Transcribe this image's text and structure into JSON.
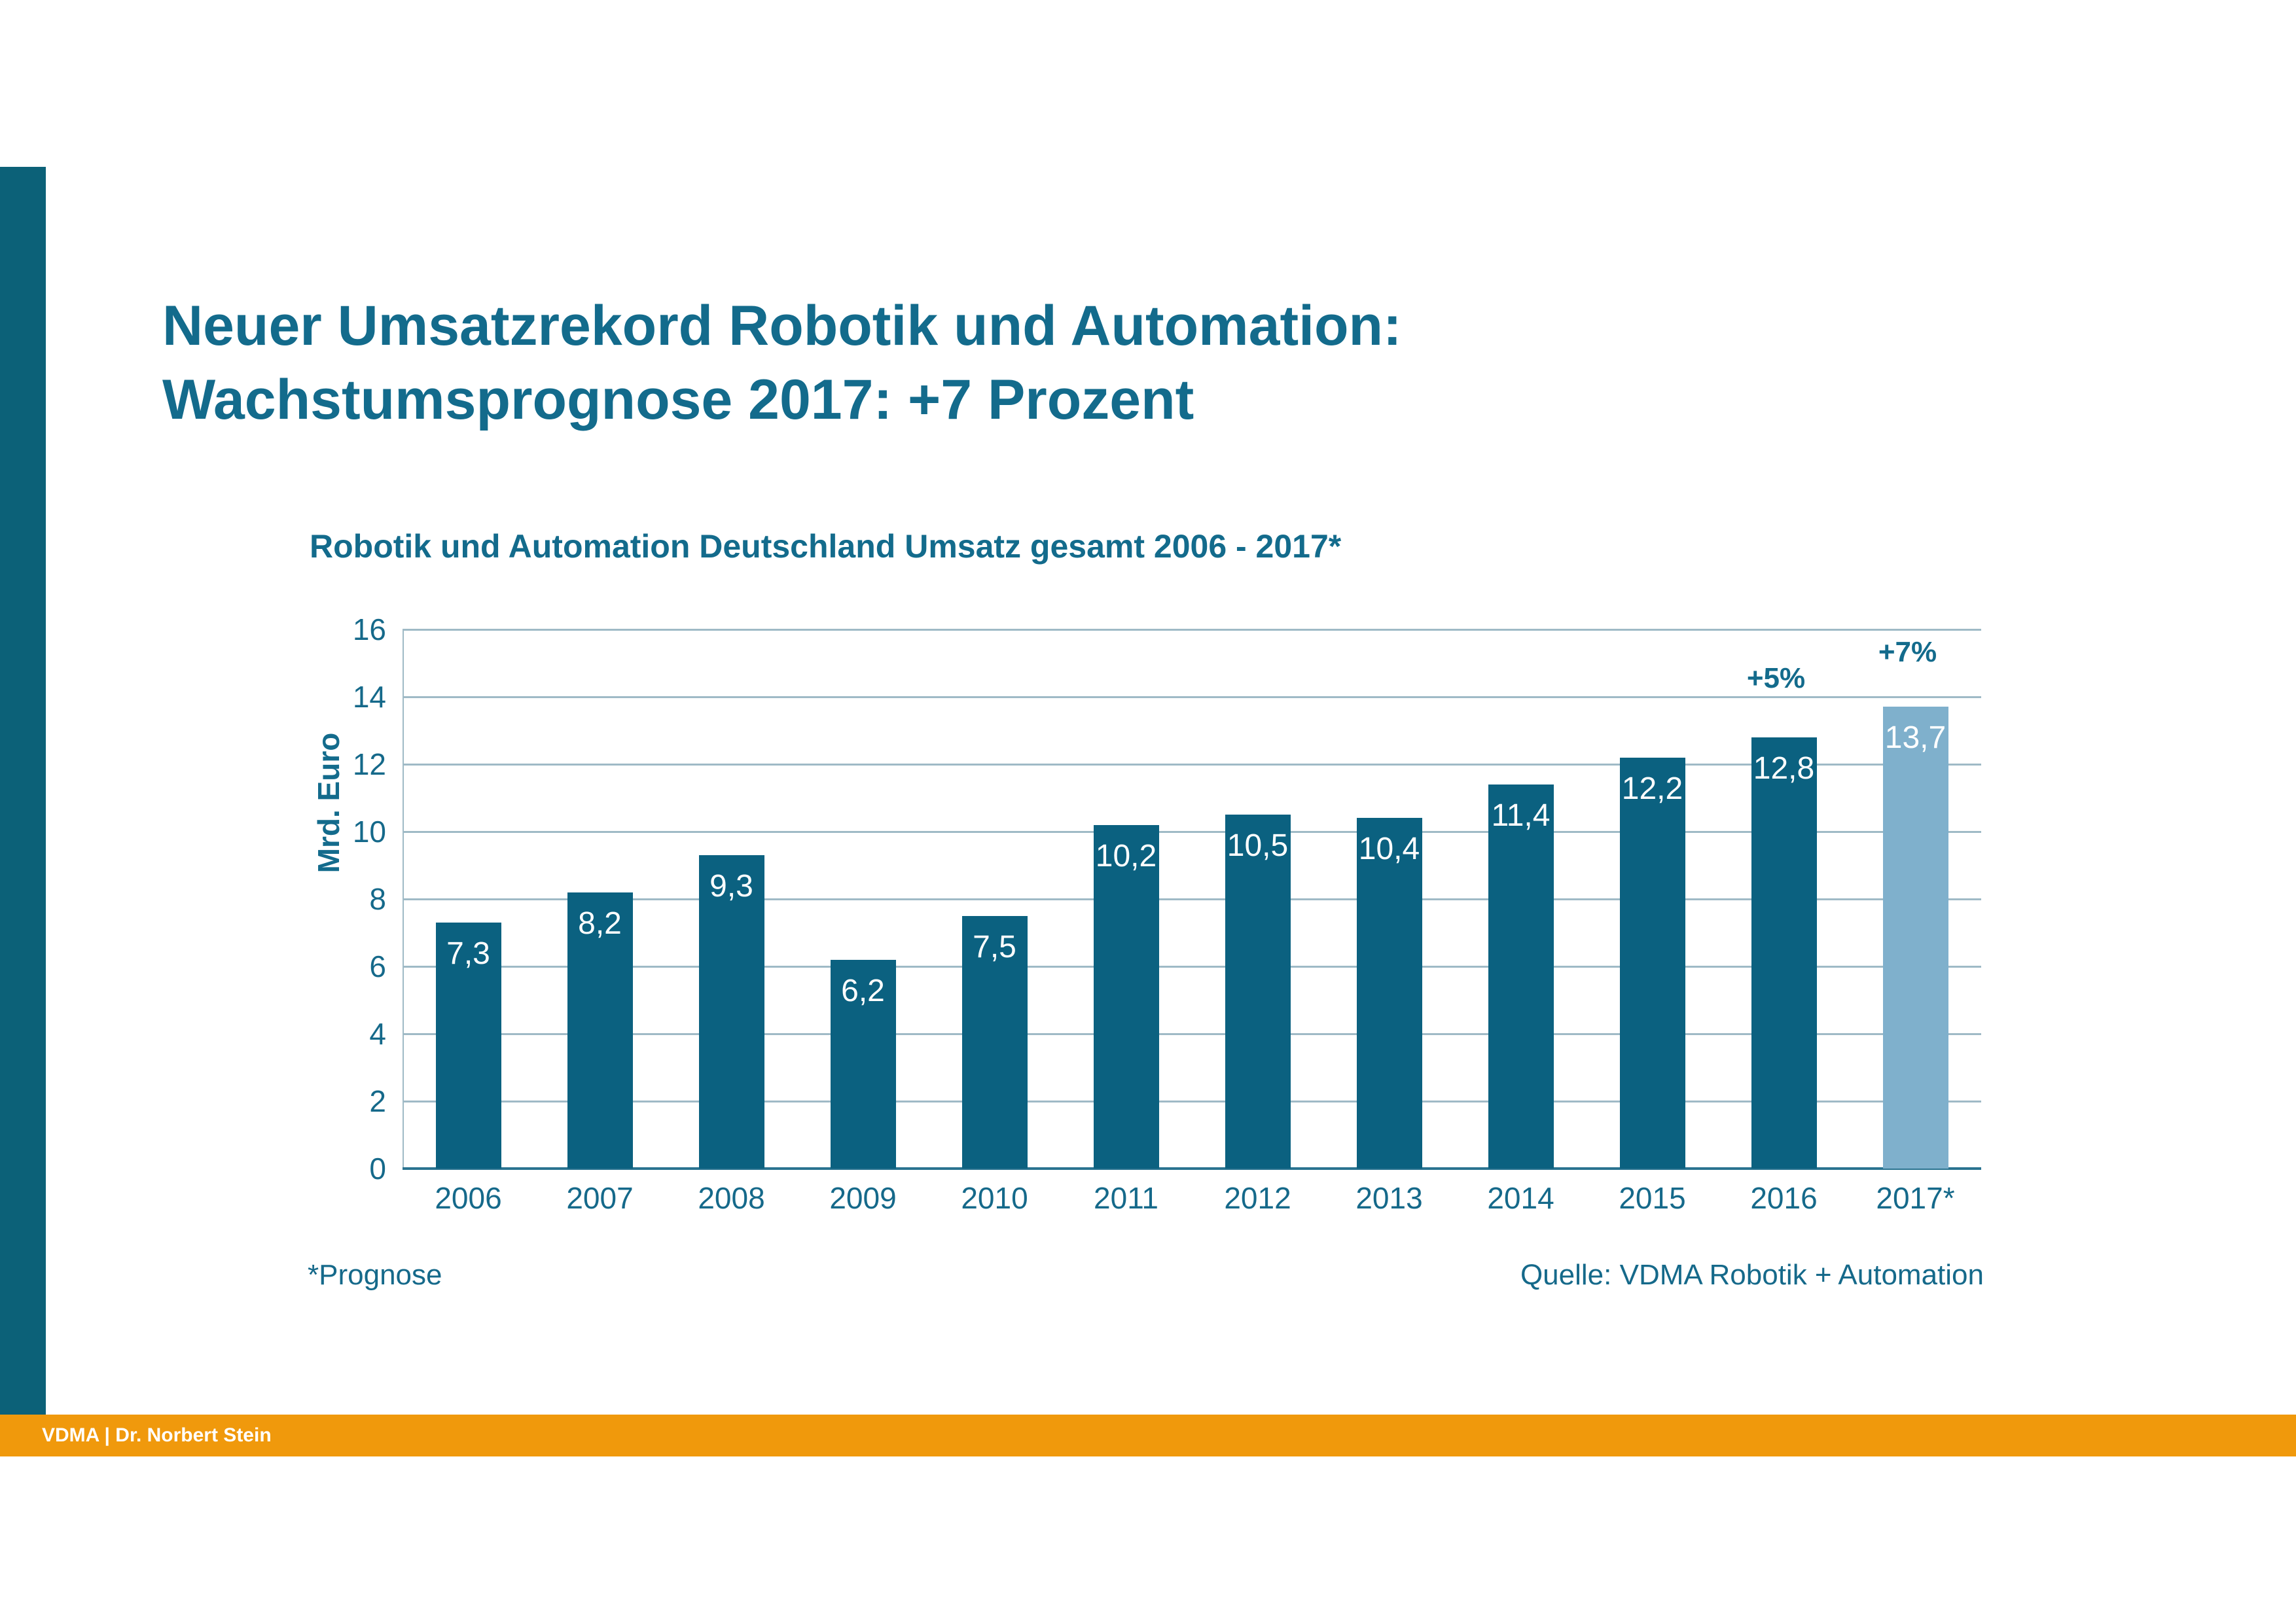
{
  "slide": {
    "title_lines": [
      "Neuer Umsatzrekord Robotik und Automation:",
      "Wachstumsprognose 2017: +7 Prozent"
    ],
    "footnote": "*Prognose",
    "source": "Quelle: VDMA Robotik + Automation",
    "footer": "VDMA | Dr. Norbert Stein"
  },
  "colors": {
    "title_teal": "#136B8C",
    "axis_teal": "#15698A",
    "bar_dark": "#0B6180",
    "bar_forecast_light": "#7FB0CC",
    "sidebar_teal": "#0C6178",
    "footer_orange": "#F0990C",
    "gridline": "#9FBAC6",
    "axis_line": "#2A7390",
    "value_label_white": "#FFFFFF"
  },
  "chart_data": {
    "type": "bar",
    "title": "Robotik und Automation Deutschland Umsatz gesamt 2006 - 2017*",
    "xlabel": "",
    "ylabel": "Mrd. Euro",
    "ylim": [
      0,
      16
    ],
    "yticks": [
      0,
      2,
      4,
      6,
      8,
      10,
      12,
      14,
      16
    ],
    "grid": "horizontal",
    "legend": "none",
    "categories": [
      "2006",
      "2007",
      "2008",
      "2009",
      "2010",
      "2011",
      "2012",
      "2013",
      "2014",
      "2015",
      "2016",
      "2017*"
    ],
    "values": [
      7.3,
      8.2,
      9.3,
      6.2,
      7.5,
      10.2,
      10.5,
      10.4,
      11.4,
      12.2,
      12.8,
      13.7
    ],
    "value_labels": [
      "7,3",
      "8,2",
      "9,3",
      "6,2",
      "7,5",
      "10,2",
      "10,5",
      "10,4",
      "11,4",
      "12,2",
      "12,8",
      "13,7"
    ],
    "forecast_index": 11,
    "annotations": [
      {
        "text": "+5%",
        "index": 10
      },
      {
        "text": "+7%",
        "index": 11
      }
    ]
  }
}
